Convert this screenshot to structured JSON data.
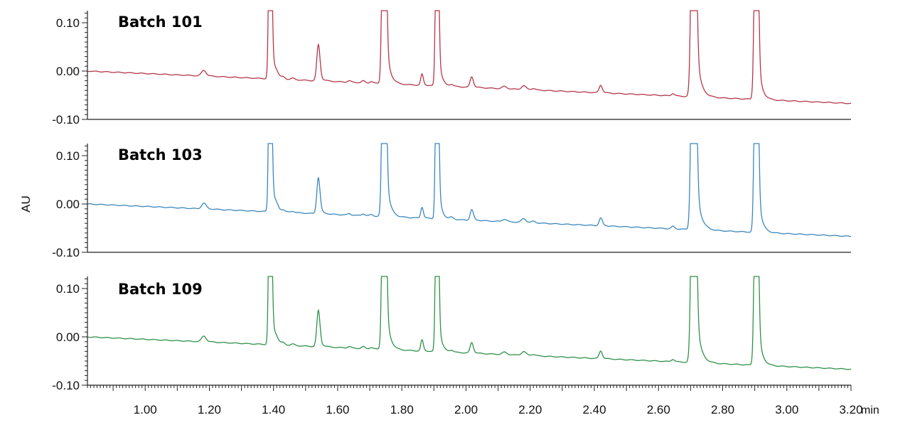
{
  "chart_data": {
    "type": "line",
    "ylabel": "AU",
    "x_unit": "min",
    "xlim": [
      0.82,
      3.2
    ],
    "ylim": [
      -0.1,
      0.125
    ],
    "x_ticks": [
      "1.00",
      "1.20",
      "1.40",
      "1.60",
      "1.80",
      "2.00",
      "2.20",
      "2.40",
      "2.60",
      "2.80",
      "3.00",
      "3.20"
    ],
    "y_ticks": [
      "0.10",
      "0.00",
      "-0.10"
    ],
    "panels": [
      {
        "name": "Batch 101",
        "color": "#b5364a"
      },
      {
        "name": "Batch 103",
        "color": "#3a87bd"
      },
      {
        "name": "Batch 109",
        "color": "#2e9148"
      }
    ],
    "baseline": {
      "start": [
        0.82,
        0.0
      ],
      "end": [
        3.2,
        -0.067
      ]
    },
    "peaks": [
      {
        "x": 1.183,
        "height": 0.012,
        "width": 0.007
      },
      {
        "x": 1.39,
        "height": 0.6,
        "width": 0.004
      },
      {
        "x": 1.41,
        "height": 0.008,
        "width": 0.006
      },
      {
        "x": 1.43,
        "height": 0.004,
        "width": 0.006
      },
      {
        "x": 1.46,
        "height": 0.003,
        "width": 0.006
      },
      {
        "x": 1.54,
        "height": 0.075,
        "width": 0.005
      },
      {
        "x": 1.636,
        "height": 0.003,
        "width": 0.005
      },
      {
        "x": 1.68,
        "height": 0.004,
        "width": 0.005
      },
      {
        "x": 1.705,
        "height": 0.003,
        "width": 0.005
      },
      {
        "x": 1.745,
        "height": 0.8,
        "width": 0.005
      },
      {
        "x": 1.863,
        "height": 0.023,
        "width": 0.004
      },
      {
        "x": 1.91,
        "height": 0.6,
        "width": 0.004
      },
      {
        "x": 1.955,
        "height": 0.004,
        "width": 0.006
      },
      {
        "x": 2.018,
        "height": 0.022,
        "width": 0.005
      },
      {
        "x": 2.12,
        "height": 0.005,
        "width": 0.007
      },
      {
        "x": 2.18,
        "height": 0.008,
        "width": 0.007
      },
      {
        "x": 2.21,
        "height": 0.003,
        "width": 0.006
      },
      {
        "x": 2.42,
        "height": 0.016,
        "width": 0.005
      },
      {
        "x": 2.645,
        "height": 0.005,
        "width": 0.005
      },
      {
        "x": 2.71,
        "height": 0.9,
        "width": 0.006
      },
      {
        "x": 2.905,
        "height": 0.7,
        "width": 0.005
      }
    ]
  }
}
